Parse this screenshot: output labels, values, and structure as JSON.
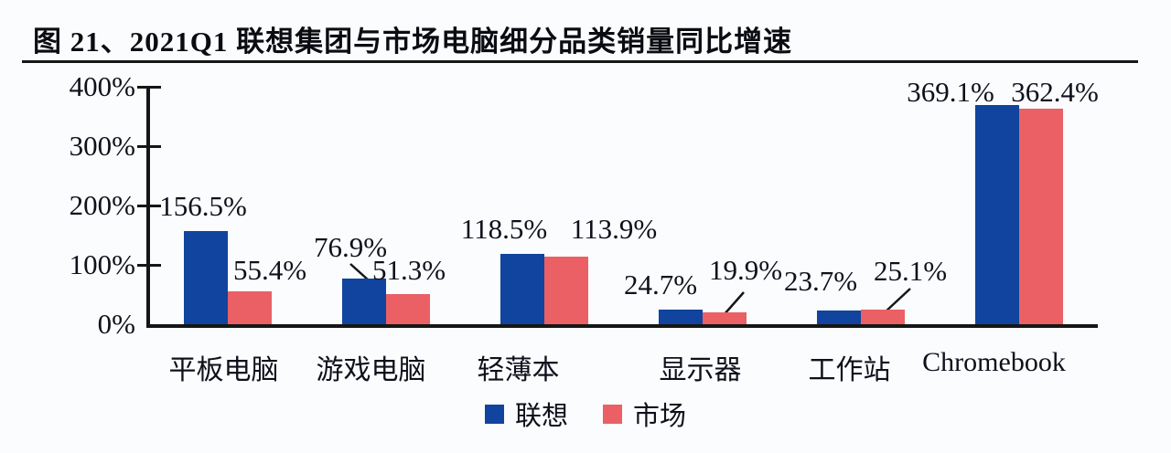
{
  "figure": {
    "title": "图 21、2021Q1 联想集团与市场电脑细分品类销量同比增速"
  },
  "chart_data": {
    "type": "bar",
    "title": "2021Q1 联想集团与市场电脑细分品类销量同比增速",
    "categories": [
      "平板电脑",
      "游戏电脑",
      "轻薄本",
      "显示器",
      "工作站",
      "Chromebook"
    ],
    "series": [
      {
        "name": "联想",
        "color": "#10449e",
        "values": [
          156.5,
          76.9,
          118.5,
          24.7,
          23.7,
          369.1
        ]
      },
      {
        "name": "市场",
        "color": "#ea6065",
        "values": [
          55.4,
          51.3,
          113.9,
          19.9,
          25.1,
          362.4
        ]
      }
    ],
    "value_label_suffix": "%",
    "yticks": [
      {
        "label": "400%",
        "value": 400
      },
      {
        "label": "300%",
        "value": 300
      },
      {
        "label": "200%",
        "value": 200
      },
      {
        "label": "100%",
        "value": 100
      },
      {
        "label": "0%",
        "value": 0
      }
    ],
    "ylim": [
      0,
      400
    ],
    "xlabel": "",
    "ylabel": "",
    "grid": false,
    "legend_position": "bottom",
    "axis_color": "#161616"
  }
}
